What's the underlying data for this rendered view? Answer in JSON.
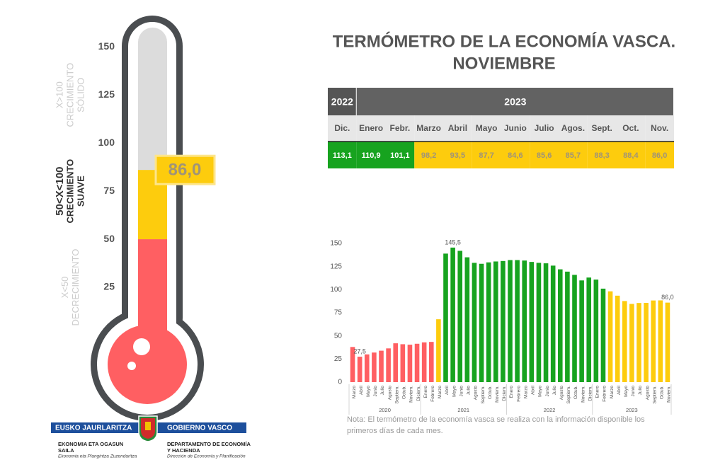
{
  "title": [
    "TERMÓMETRO DE LA ECONOMÍA VASCA.",
    "NOVIEMBRE"
  ],
  "table": {
    "years": [
      {
        "label": "2022",
        "months": [
          "Dic."
        ],
        "values": [
          113.1
        ],
        "value_labels": [
          "113,1"
        ]
      },
      {
        "label": "2023",
        "months": [
          "Enero",
          "Febr.",
          "Marzo",
          "Abril",
          "Mayo",
          "Junio",
          "Julio",
          "Agos.",
          "Sept.",
          "Oct.",
          "Nov."
        ],
        "values": [
          110.9,
          101.1,
          98.2,
          93.5,
          87.7,
          84.6,
          85.6,
          85.7,
          88.3,
          88.4,
          86.0
        ],
        "value_labels": [
          "110,9",
          "101,1",
          "98,2",
          "93,5",
          "87,7",
          "84,6",
          "85,6",
          "85,7",
          "88,3",
          "88,4",
          "86,0"
        ]
      }
    ]
  },
  "chart_data": [
    {
      "type": "thermometer",
      "value": 86.0,
      "value_label": "86,0",
      "ylim": [
        0,
        160
      ],
      "yticks": [
        25,
        50,
        75,
        100,
        125,
        150
      ],
      "empty_color": "#dcdcdc",
      "zones": [
        {
          "lines": [
            "X<50",
            "DECRECIMIENTO"
          ],
          "color": "#ff5f62",
          "text_color": "#ffffff"
        },
        {
          "lines": [
            "50<X<100",
            "CRECIMIENTO",
            "SUAVE"
          ],
          "threshold": 50,
          "color": "#fdcc0d",
          "text_color": "#a09478"
        },
        {
          "lines": [
            "X>100",
            "CRECIMIENTO",
            "SÓLIDO"
          ],
          "threshold": 100,
          "color": "#17a31f",
          "text_color": "#ffffff"
        }
      ]
    },
    {
      "type": "bar",
      "ylim": [
        0,
        150
      ],
      "yticks": [
        0,
        25,
        50,
        75,
        100,
        125,
        150
      ],
      "groups": [
        {
          "label": "2020",
          "categories": [
            "Marzo",
            "Abril",
            "Mayo",
            "Junio",
            "Julio",
            "Agosto",
            "Septiem.",
            "Octub.",
            "Noviem.",
            "Diciem."
          ]
        },
        {
          "label": "2021",
          "categories": [
            "Enero",
            "Febrero",
            "Marzo",
            "Abril",
            "Mayo",
            "Junio",
            "Julio",
            "Agosto",
            "Septiem.",
            "Octub.",
            "Noviem.",
            "Diciem."
          ]
        },
        {
          "label": "2022",
          "categories": [
            "Enero",
            "Febrero",
            "Marzo",
            "Abril",
            "Mayo",
            "Junio",
            "Julio",
            "Agosto",
            "Septiem.",
            "Octub.",
            "Noviem.",
            "Diciem."
          ]
        },
        {
          "label": "2023",
          "categories": [
            "Enero",
            "Febrero",
            "Marzo",
            "Abril",
            "Mayo",
            "Junio",
            "Julio",
            "Agosto",
            "Septiem.",
            "Octub.",
            "Noviem."
          ]
        }
      ],
      "values": [
        38,
        27.5,
        30,
        32,
        34,
        36.5,
        42,
        41,
        40.5,
        41.5,
        43,
        43.5,
        68,
        139,
        145.5,
        142,
        135,
        129,
        128,
        129.5,
        130.5,
        131,
        132,
        132,
        131.5,
        130,
        129,
        128.5,
        126,
        122,
        119.5,
        116,
        110,
        113.1,
        110.9,
        101.1,
        98.2,
        93.5,
        87.7,
        84.6,
        85.6,
        85.7,
        88.3,
        88.4,
        86.0
      ],
      "value_labels": [
        null,
        "27,5",
        null,
        null,
        null,
        null,
        null,
        null,
        null,
        null,
        null,
        null,
        null,
        null,
        "145,5",
        null,
        null,
        null,
        null,
        null,
        null,
        null,
        null,
        null,
        null,
        null,
        null,
        null,
        null,
        null,
        null,
        null,
        null,
        null,
        null,
        null,
        null,
        null,
        null,
        null,
        null,
        null,
        null,
        null,
        "86,0"
      ],
      "note": "Nota: El termómetro de la economía vasca se realiza con la información disponible los primeros días de cada mes."
    }
  ],
  "logo": {
    "left_banner": "EUSKO JAURLARITZA",
    "right_banner": "GOBIERNO VASCO",
    "left_lines": [
      "EKONOMIA ETA OGASUN",
      "SAILA"
    ],
    "left_sub": "Ekonomia eta Plangintza Zuzendaritza",
    "right_lines": [
      "DEPARTAMENTO DE ECONOMÍA",
      "Y HACIENDA"
    ],
    "right_sub": "Dirección de Economía y Planificación"
  }
}
